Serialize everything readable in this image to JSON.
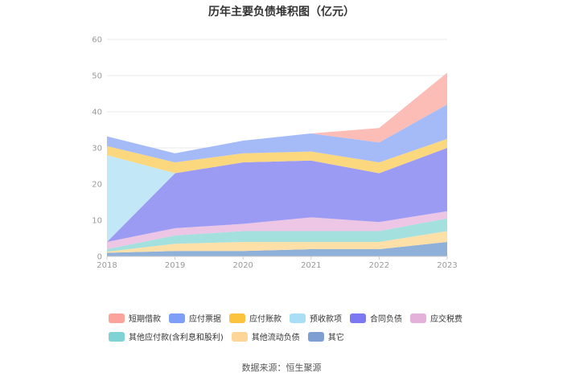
{
  "chart_data": {
    "type": "area",
    "stacked": true,
    "title": "历年主要负债堆积图（亿元）",
    "source": "数据来源：恒生聚源",
    "x": [
      "2018",
      "2019",
      "2020",
      "2021",
      "2022",
      "2023"
    ],
    "ylim": [
      0,
      60
    ],
    "yticks": [
      0,
      10,
      20,
      30,
      40,
      50,
      60
    ],
    "grid": true,
    "legend_position": "bottom",
    "series": [
      {
        "name": "其它",
        "color": "#8fb0d8",
        "values": [
          1.0,
          1.5,
          1.5,
          2.0,
          2.0,
          4.0
        ]
      },
      {
        "name": "其他流动负债",
        "color": "#fde0a8",
        "values": [
          0.3,
          2.0,
          2.5,
          2.0,
          2.0,
          3.0
        ]
      },
      {
        "name": "其他应付款(含利息和股利)",
        "color": "#a3e0de",
        "values": [
          0.7,
          2.3,
          3.0,
          3.0,
          3.0,
          3.5
        ]
      },
      {
        "name": "应交税费",
        "color": "#ecc6e4",
        "values": [
          2.0,
          2.0,
          2.0,
          3.8,
          2.5,
          2.0
        ]
      },
      {
        "name": "合同负债",
        "color": "#9c9bf4",
        "values": [
          0.0,
          15.2,
          17.0,
          15.7,
          13.5,
          17.5
        ]
      },
      {
        "name": "预收款项",
        "color": "#c2e8f8",
        "values": [
          24.0,
          0.0,
          0.0,
          0.0,
          0.0,
          0.0
        ]
      },
      {
        "name": "应付账款",
        "color": "#fbd77d",
        "values": [
          2.5,
          3.0,
          2.5,
          2.5,
          3.0,
          2.5
        ]
      },
      {
        "name": "应付票据",
        "color": "#a5bbf8",
        "values": [
          2.7,
          2.5,
          3.5,
          5.0,
          5.5,
          9.5
        ]
      },
      {
        "name": "短期借款",
        "color": "#fbbdb6",
        "values": [
          0.0,
          0.0,
          0.0,
          0.0,
          4.0,
          8.8
        ]
      }
    ],
    "legend_order": [
      "短期借款",
      "应付票据",
      "应付账款",
      "预收款项",
      "合同负债",
      "应交税费",
      "其他应付款(含利息和股利)",
      "其他流动负债",
      "其它"
    ],
    "legend_colors": {
      "短期借款": "#fca49b",
      "应付票据": "#7f9ef8",
      "应付账款": "#fcc33f",
      "预收款项": "#a9def7",
      "合同负债": "#7b78f2",
      "应交税费": "#e3b1da",
      "其他应付款(含利息和股利)": "#7fd3d4",
      "其他流动负债": "#fdd697",
      "其它": "#7f9fd3"
    }
  }
}
